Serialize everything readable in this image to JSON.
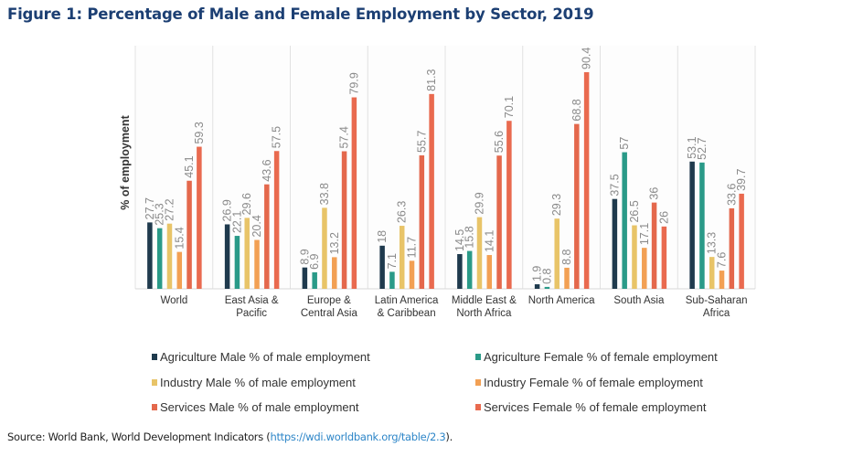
{
  "figure": {
    "title": "Figure 1: Percentage of Male and Female Employment by Sector, 2019",
    "source_prefix": "Source: World Bank, World Development Indicators (",
    "source_link": "https://wdi.worldbank.org/table/2.3",
    "source_suffix": ")."
  },
  "chart_data": {
    "type": "bar",
    "title": "Figure 1: Percentage of Male and Female Employment by Sector, 2019",
    "xlabel": "",
    "ylabel": "% of employment",
    "ylim": [
      0,
      100
    ],
    "grid": false,
    "legend_position": "bottom",
    "categories": [
      [
        "World"
      ],
      [
        "East Asia &",
        "Pacific"
      ],
      [
        "Europe &",
        "Central Asia"
      ],
      [
        "Latin America",
        "& Caribbean"
      ],
      [
        "Middle East &",
        "North Africa"
      ],
      [
        "North America"
      ],
      [
        "South Asia"
      ],
      [
        "Sub-Saharan",
        "Africa"
      ]
    ],
    "series": [
      {
        "name": "Agriculture Male % of male employment",
        "color": "#1f3a4d",
        "values": [
          27.7,
          26.9,
          8.9,
          18,
          14.5,
          1.9,
          37.5,
          53.1
        ]
      },
      {
        "name": "Agriculture Female % of female employment",
        "color": "#2a9a88",
        "values": [
          25.3,
          22.1,
          6.9,
          7.1,
          15.8,
          0.8,
          57,
          52.7
        ]
      },
      {
        "name": "Industry Male % of male employment",
        "color": "#e8c468",
        "values": [
          27.2,
          29.6,
          33.8,
          26.3,
          29.9,
          29.3,
          26.5,
          13.3
        ]
      },
      {
        "name": "Industry Female % of female employment",
        "color": "#f2a054",
        "values": [
          15.4,
          20.4,
          13.2,
          11.7,
          14.1,
          8.8,
          17.1,
          7.6
        ]
      },
      {
        "name": "Services Male % of male employment",
        "color": "#e4684c",
        "values": [
          45.1,
          43.6,
          57.4,
          55.7,
          55.6,
          68.8,
          36,
          33.6
        ]
      },
      {
        "name": "Services Female % of female employment",
        "color": "#e96a4f",
        "values": [
          59.3,
          57.5,
          79.9,
          81.3,
          70.1,
          90.4,
          26,
          39.7
        ]
      }
    ]
  }
}
